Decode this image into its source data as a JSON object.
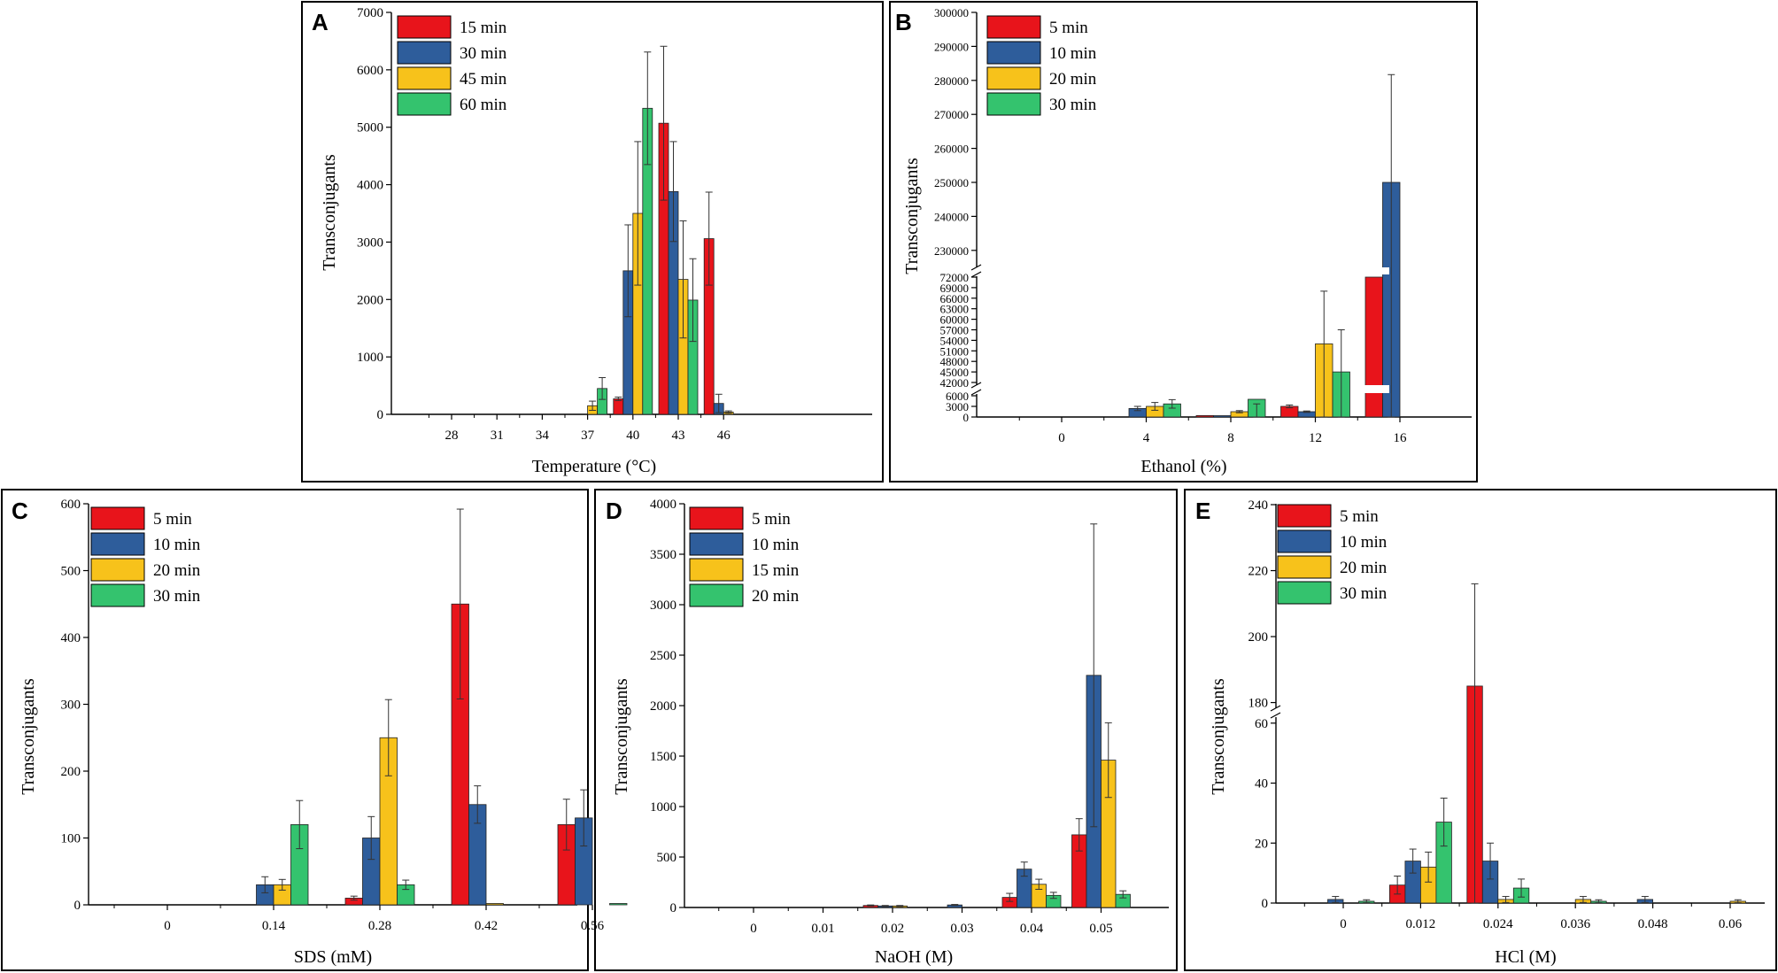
{
  "colors": {
    "red": "#e8141b",
    "blue": "#2e5d9b",
    "yellow": "#f7c21b",
    "green": "#34c36e"
  },
  "chart_data": [
    {
      "panel": "A",
      "type": "bar",
      "categories": [
        "28",
        "31",
        "34",
        "37",
        "40",
        "43",
        "46"
      ],
      "xlabel": "Temperature (°C)",
      "ylabel": "Transconjugants",
      "ylim": [
        0,
        7000
      ],
      "yticks": [
        0,
        1000,
        2000,
        3000,
        4000,
        5000,
        6000,
        7000
      ],
      "legend_position": "top-left",
      "series": [
        {
          "name": "15 min",
          "color": "red",
          "values": [
            0,
            0,
            0,
            0,
            270,
            5070,
            3060
          ],
          "errors": [
            0,
            0,
            0,
            0,
            30,
            1340,
            810
          ]
        },
        {
          "name": "30 min",
          "color": "blue",
          "values": [
            0,
            0,
            0,
            0,
            2500,
            3880,
            190
          ],
          "errors": [
            0,
            0,
            0,
            0,
            800,
            870,
            160
          ]
        },
        {
          "name": "45 min",
          "color": "yellow",
          "values": [
            0,
            0,
            0,
            150,
            3500,
            2350,
            40
          ],
          "errors": [
            0,
            0,
            0,
            80,
            1250,
            1020,
            20
          ]
        },
        {
          "name": "60 min",
          "color": "green",
          "values": [
            0,
            0,
            0,
            450,
            5330,
            1990,
            0
          ],
          "errors": [
            0,
            0,
            0,
            190,
            980,
            720,
            0
          ]
        }
      ]
    },
    {
      "panel": "B",
      "type": "bar",
      "categories": [
        "0",
        "4",
        "8",
        "12",
        "16"
      ],
      "xlabel": "Ethanol (%)",
      "ylabel": "Transconjugants",
      "axis_breaks": [
        [
          6000,
          42000
        ],
        [
          72000,
          225000
        ]
      ],
      "yticks_lower": [
        0,
        3000,
        6000
      ],
      "yticks_mid": [
        42000,
        45000,
        48000,
        51000,
        54000,
        57000,
        60000,
        63000,
        66000,
        69000,
        72000
      ],
      "yticks_upper": [
        230000,
        240000,
        250000,
        260000,
        270000,
        280000,
        290000,
        300000
      ],
      "legend_position": "top-left",
      "series": [
        {
          "name": "5 min",
          "color": "red",
          "values": [
            0,
            0,
            400,
            3000,
            72000
          ],
          "errors": [
            0,
            0,
            0,
            400,
            0
          ]
        },
        {
          "name": "10 min",
          "color": "blue",
          "values": [
            0,
            2400,
            300,
            1500,
            250000
          ],
          "errors": [
            0,
            600,
            0,
            200,
            31700
          ]
        },
        {
          "name": "20 min",
          "color": "yellow",
          "values": [
            0,
            3000,
            1500,
            53000,
            0
          ],
          "errors": [
            0,
            1100,
            300,
            15000,
            0
          ]
        },
        {
          "name": "30 min",
          "color": "green",
          "values": [
            0,
            3700,
            5000,
            45000,
            0
          ],
          "errors": [
            0,
            1200,
            1300,
            12000,
            0
          ]
        }
      ]
    },
    {
      "panel": "C",
      "type": "bar",
      "categories": [
        "0",
        "0.14",
        "0.28",
        "0.42",
        "0.56"
      ],
      "xlabel": "SDS (mM)",
      "ylabel": "Transconjugants",
      "ylim": [
        0,
        600
      ],
      "yticks": [
        0,
        100,
        200,
        300,
        400,
        500,
        600
      ],
      "legend_position": "top-left",
      "series": [
        {
          "name": "5 min",
          "color": "red",
          "values": [
            0,
            0,
            10,
            450,
            120
          ],
          "errors": [
            0,
            0,
            3,
            142,
            38
          ]
        },
        {
          "name": "10 min",
          "color": "blue",
          "values": [
            0,
            30,
            100,
            150,
            130
          ],
          "errors": [
            0,
            12,
            32,
            28,
            42
          ]
        },
        {
          "name": "20 min",
          "color": "yellow",
          "values": [
            0,
            30,
            250,
            2,
            0
          ],
          "errors": [
            0,
            8,
            57,
            0,
            0
          ]
        },
        {
          "name": "30 min",
          "color": "green",
          "values": [
            0,
            120,
            30,
            0,
            2
          ],
          "errors": [
            0,
            36,
            7,
            0,
            0
          ]
        }
      ]
    },
    {
      "panel": "D",
      "type": "bar",
      "categories": [
        "0",
        "0.01",
        "0.02",
        "0.03",
        "0.04",
        "0.05"
      ],
      "xlabel": "NaOH (M)",
      "ylabel": "Transconjugants",
      "ylim": [
        0,
        4000
      ],
      "yticks": [
        0,
        500,
        1000,
        1500,
        2000,
        2500,
        3000,
        3500,
        4000
      ],
      "legend_position": "top-left",
      "series": [
        {
          "name": "5 min",
          "color": "red",
          "values": [
            0,
            0,
            20,
            0,
            100,
            720
          ],
          "errors": [
            0,
            0,
            5,
            0,
            40,
            160
          ]
        },
        {
          "name": "10 min",
          "color": "blue",
          "values": [
            0,
            0,
            15,
            25,
            380,
            2300
          ],
          "errors": [
            0,
            0,
            5,
            5,
            70,
            1500
          ]
        },
        {
          "name": "15 min",
          "color": "yellow",
          "values": [
            0,
            0,
            15,
            0,
            230,
            1460
          ],
          "errors": [
            0,
            0,
            5,
            0,
            50,
            370
          ]
        },
        {
          "name": "20 min",
          "color": "green",
          "values": [
            0,
            0,
            0,
            0,
            120,
            130
          ],
          "errors": [
            0,
            0,
            0,
            0,
            30,
            35
          ]
        }
      ]
    },
    {
      "panel": "E",
      "type": "bar",
      "categories": [
        "0",
        "0.012",
        "0.024",
        "0.036",
        "0.048",
        "0.06"
      ],
      "xlabel": "HCl (M)",
      "ylabel": "Transconjugants",
      "axis_break": [
        62,
        178
      ],
      "yticks_lower": [
        0,
        20,
        40,
        60
      ],
      "yticks_upper": [
        180,
        200,
        220,
        240
      ],
      "legend_position": "top-left",
      "series": [
        {
          "name": "5 min",
          "color": "red",
          "values": [
            0,
            6,
            185,
            0,
            0,
            0
          ],
          "errors": [
            0,
            3,
            31,
            0,
            0,
            0
          ]
        },
        {
          "name": "10 min",
          "color": "blue",
          "values": [
            1.2,
            14,
            14,
            0,
            1.2,
            0
          ],
          "errors": [
            1,
            4,
            6,
            0,
            1,
            0
          ]
        },
        {
          "name": "20 min",
          "color": "yellow",
          "values": [
            0,
            12,
            1.2,
            1.2,
            0,
            0.6
          ],
          "errors": [
            0,
            5,
            1,
            1,
            0,
            0.5
          ]
        },
        {
          "name": "30 min",
          "color": "green",
          "values": [
            0.6,
            27,
            5,
            0.6,
            0,
            0
          ],
          "errors": [
            0.5,
            8,
            3,
            0.5,
            0,
            0
          ]
        }
      ]
    }
  ]
}
